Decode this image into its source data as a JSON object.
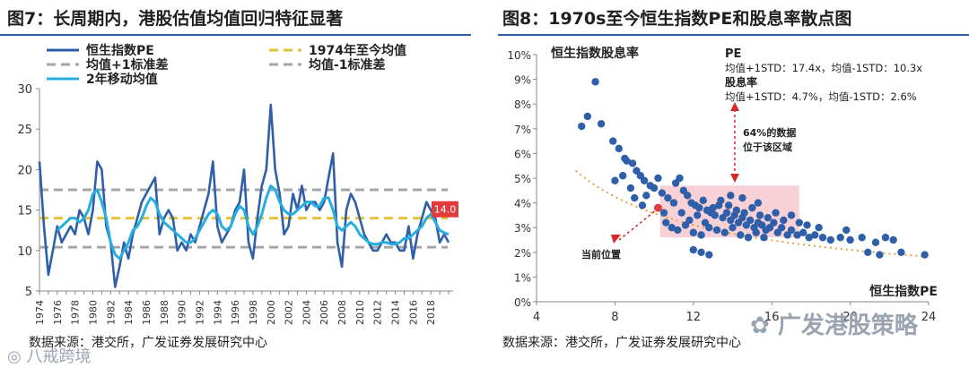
{
  "left": {
    "title": "图7：长周期内，港股估值均值回归特征显著",
    "source": "数据来源：港交所，广发证券发展研究中心",
    "chart_data": {
      "type": "line",
      "title": "图7：长周期内，港股估值均值回归特征显著",
      "x_tick_labels": [
        "1974",
        "1976",
        "1978",
        "1980",
        "1982",
        "1984",
        "1986",
        "1988",
        "1990",
        "1992",
        "1994",
        "1996",
        "1998",
        "2000",
        "2002",
        "2004",
        "2006",
        "2008",
        "2010",
        "2012",
        "2014",
        "2016",
        "2018"
      ],
      "x_range": [
        1974,
        2020.5
      ],
      "y_ticks": [
        5,
        10,
        15,
        20,
        25,
        30
      ],
      "ylim": [
        5,
        30
      ],
      "grid": false,
      "legend_position": "top",
      "current_label": "14.0",
      "series": [
        {
          "name": "恒生指数PE",
          "color": "#2f5fa8",
          "x": [
            1974.0,
            1974.5,
            1975.0,
            1975.5,
            1976.0,
            1976.5,
            1977.0,
            1977.5,
            1978.0,
            1978.5,
            1979.0,
            1979.5,
            1980.0,
            1980.5,
            1981.0,
            1981.5,
            1982.0,
            1982.5,
            1983.0,
            1983.5,
            1984.0,
            1984.5,
            1985.0,
            1985.5,
            1986.0,
            1986.5,
            1987.0,
            1987.5,
            1988.0,
            1988.5,
            1989.0,
            1989.5,
            1990.0,
            1990.5,
            1991.0,
            1991.5,
            1992.0,
            1992.5,
            1993.0,
            1993.5,
            1994.0,
            1994.5,
            1995.0,
            1995.5,
            1996.0,
            1996.5,
            1997.0,
            1997.5,
            1998.0,
            1998.5,
            1999.0,
            1999.5,
            2000.0,
            2000.5,
            2001.0,
            2001.5,
            2002.0,
            2002.5,
            2003.0,
            2003.5,
            2004.0,
            2004.5,
            2005.0,
            2005.5,
            2006.0,
            2006.5,
            2007.0,
            2007.5,
            2008.0,
            2008.5,
            2009.0,
            2009.5,
            2010.0,
            2010.5,
            2011.0,
            2011.5,
            2012.0,
            2012.5,
            2013.0,
            2013.5,
            2014.0,
            2014.5,
            2015.0,
            2015.5,
            2016.0,
            2016.5,
            2017.0,
            2017.5,
            2018.0,
            2018.5,
            2019.0,
            2019.5,
            2020.0
          ],
          "y": [
            21,
            13,
            7,
            10,
            13,
            11,
            12,
            13,
            12,
            15,
            14,
            12,
            15,
            21,
            20,
            13,
            11,
            5.5,
            8,
            11,
            9,
            12,
            14,
            16,
            17,
            18,
            19,
            12,
            14,
            15,
            14,
            10,
            11,
            10,
            12,
            11,
            13,
            15,
            17,
            21,
            13,
            11,
            12,
            13,
            15,
            16,
            20,
            11,
            9,
            14,
            18,
            20,
            28,
            20,
            17,
            12,
            13,
            17,
            15,
            18,
            15,
            16,
            16,
            15,
            16,
            19,
            22,
            11,
            8,
            15,
            17,
            16,
            14,
            12,
            11,
            10,
            10,
            11,
            12,
            11,
            11,
            10,
            10,
            13,
            9,
            12,
            14,
            16,
            15,
            14,
            11,
            12,
            11
          ]
        },
        {
          "name": "1974年至今均值",
          "color": "#e6c23a",
          "y_const": 14.0
        },
        {
          "name": "均值+1标准差",
          "color": "#a6a6a6",
          "y_const": 17.5
        },
        {
          "name": "均值-1标准差",
          "color": "#a6a6a6",
          "y_const": 10.4
        },
        {
          "name": "2年移动均值",
          "color": "#27aee0",
          "x": [
            1976.0,
            1976.5,
            1977.0,
            1977.5,
            1978.0,
            1978.5,
            1979.0,
            1979.5,
            1980.0,
            1980.5,
            1981.0,
            1981.5,
            1982.0,
            1982.5,
            1983.0,
            1983.5,
            1984.0,
            1984.5,
            1985.0,
            1985.5,
            1986.0,
            1986.5,
            1987.0,
            1987.5,
            1988.0,
            1988.5,
            1989.0,
            1989.5,
            1990.0,
            1990.5,
            1991.0,
            1991.5,
            1992.0,
            1992.5,
            1993.0,
            1993.5,
            1994.0,
            1994.5,
            1995.0,
            1995.5,
            1996.0,
            1996.5,
            1997.0,
            1997.5,
            1998.0,
            1998.5,
            1999.0,
            1999.5,
            2000.0,
            2000.5,
            2001.0,
            2001.5,
            2002.0,
            2002.5,
            2003.0,
            2003.5,
            2004.0,
            2004.5,
            2005.0,
            2005.5,
            2006.0,
            2006.5,
            2007.0,
            2007.5,
            2008.0,
            2008.5,
            2009.0,
            2009.5,
            2010.0,
            2010.5,
            2011.0,
            2011.5,
            2012.0,
            2012.5,
            2013.0,
            2013.5,
            2014.0,
            2014.5,
            2015.0,
            2015.5,
            2016.0,
            2016.5,
            2017.0,
            2017.5,
            2018.0,
            2018.5,
            2019.0,
            2019.5,
            2020.0
          ],
          "y": [
            12.5,
            13,
            13.5,
            14,
            14,
            13.5,
            14,
            15,
            17,
            17.5,
            16,
            14,
            11,
            9.5,
            9,
            10,
            11,
            12.5,
            13,
            14,
            15.5,
            16.5,
            16,
            14.5,
            13.5,
            13,
            12.5,
            12,
            11.5,
            11,
            11,
            11.5,
            12.5,
            13.5,
            14.5,
            15,
            14.5,
            13,
            12.5,
            13,
            14.5,
            15.5,
            15,
            13,
            12,
            13,
            14.5,
            16.5,
            18,
            17.5,
            16,
            15,
            14.5,
            14.5,
            15,
            15.5,
            16,
            16,
            15.5,
            15.5,
            16.5,
            16.5,
            15,
            13,
            12.5,
            13,
            13.5,
            13,
            12,
            11.5,
            11,
            10.8,
            10.8,
            11,
            11,
            10.8,
            10.8,
            11,
            11.5,
            11.5,
            12,
            12.5,
            13,
            14,
            14.5,
            13.5,
            12.5,
            12.2,
            12
          ]
        }
      ]
    }
  },
  "right": {
    "title": "图8：1970s至今恒生指数PE和股息率散点图",
    "source": "数据来源：港交所，广发证券发展研究中心",
    "chart_data": {
      "type": "scatter",
      "title": "图8：1970s至今恒生指数PE和股息率散点图",
      "xlabel": "恒生指数PE",
      "ylabel": "恒生指数股息率",
      "xlim": [
        4,
        24
      ],
      "ylim": [
        0,
        10
      ],
      "x_ticks": [
        4,
        8,
        12,
        16,
        20,
        24
      ],
      "y_tick_labels": [
        "0%",
        "1%",
        "2%",
        "3%",
        "4%",
        "5%",
        "6%",
        "7%",
        "8%",
        "9%",
        "10%"
      ],
      "color": "#2f5fa8",
      "trend_color": "#e6a23c",
      "highlight_band": {
        "x": [
          10.3,
          17.4
        ],
        "y": [
          2.6,
          4.7
        ],
        "color": "#f7c9cf"
      },
      "annotations": {
        "pe_header": "PE",
        "pe_text": "均值+1STD：17.4x，均值-1STD：10.3x",
        "dy_header": "股息率",
        "dy_text": "均值+1STD：4.7%，均值-1STD：2.6%",
        "band_note_1": "64%的数据",
        "band_note_2": "位于该区域",
        "current_note": "当前位置"
      },
      "current_point": {
        "x": 10.2,
        "y": 3.8
      },
      "points": [
        [
          7.0,
          8.9
        ],
        [
          6.6,
          7.5
        ],
        [
          6.3,
          7.1
        ],
        [
          7.3,
          7.2
        ],
        [
          7.9,
          6.5
        ],
        [
          8.2,
          6.2
        ],
        [
          8.5,
          5.8
        ],
        [
          8.6,
          5.7
        ],
        [
          8.9,
          5.6
        ],
        [
          9.1,
          5.3
        ],
        [
          9.3,
          5.1
        ],
        [
          9.5,
          4.9
        ],
        [
          9.8,
          4.7
        ],
        [
          10.0,
          4.6
        ],
        [
          10.2,
          5.0
        ],
        [
          10.4,
          4.4
        ],
        [
          10.7,
          4.2
        ],
        [
          11.1,
          4.8
        ],
        [
          11.3,
          5.0
        ],
        [
          11.5,
          4.5
        ],
        [
          11.7,
          4.3
        ],
        [
          11.9,
          4.0
        ],
        [
          12.1,
          3.9
        ],
        [
          12.3,
          3.8
        ],
        [
          12.5,
          4.1
        ],
        [
          12.7,
          3.7
        ],
        [
          12.9,
          3.6
        ],
        [
          13.1,
          3.5
        ],
        [
          13.3,
          3.9
        ],
        [
          13.5,
          3.4
        ],
        [
          13.7,
          3.6
        ],
        [
          13.9,
          3.3
        ],
        [
          14.1,
          3.5
        ],
        [
          14.3,
          3.2
        ],
        [
          14.5,
          3.4
        ],
        [
          14.7,
          3.1
        ],
        [
          14.9,
          3.3
        ],
        [
          15.1,
          3.0
        ],
        [
          15.3,
          3.2
        ],
        [
          15.5,
          3.1
        ],
        [
          15.7,
          2.9
        ],
        [
          15.9,
          3.0
        ],
        [
          16.1,
          3.2
        ],
        [
          16.3,
          2.8
        ],
        [
          16.5,
          3.0
        ],
        [
          16.8,
          2.7
        ],
        [
          17.0,
          2.9
        ],
        [
          17.3,
          2.7
        ],
        [
          17.6,
          2.8
        ],
        [
          17.9,
          2.6
        ],
        [
          18.2,
          2.7
        ],
        [
          18.6,
          2.6
        ],
        [
          19.0,
          2.5
        ],
        [
          19.5,
          2.6
        ],
        [
          20.0,
          2.5
        ],
        [
          20.6,
          2.6
        ],
        [
          21.3,
          2.4
        ],
        [
          21.8,
          2.6
        ],
        [
          22.2,
          2.5
        ],
        [
          23.8,
          1.9
        ],
        [
          11.0,
          4.0
        ],
        [
          11.4,
          3.6
        ],
        [
          11.8,
          3.3
        ],
        [
          12.2,
          3.5
        ],
        [
          12.6,
          3.2
        ],
        [
          13.0,
          3.8
        ],
        [
          13.4,
          4.1
        ],
        [
          13.8,
          3.9
        ],
        [
          14.2,
          3.7
        ],
        [
          14.6,
          3.6
        ],
        [
          15.0,
          3.8
        ],
        [
          15.4,
          3.5
        ],
        [
          15.8,
          3.4
        ],
        [
          16.2,
          3.6
        ],
        [
          16.6,
          3.3
        ],
        [
          17.0,
          3.5
        ],
        [
          17.4,
          3.2
        ],
        [
          10.6,
          3.2
        ],
        [
          10.9,
          3.0
        ],
        [
          11.2,
          2.9
        ],
        [
          11.6,
          3.1
        ],
        [
          12.0,
          2.8
        ],
        [
          12.4,
          2.7
        ],
        [
          12.8,
          3.0
        ],
        [
          13.2,
          2.9
        ],
        [
          13.6,
          2.8
        ],
        [
          14.0,
          3.0
        ],
        [
          14.4,
          2.7
        ],
        [
          14.8,
          2.6
        ],
        [
          15.2,
          2.8
        ],
        [
          15.6,
          2.6
        ],
        [
          9.0,
          4.2
        ],
        [
          9.4,
          3.9
        ],
        [
          8.8,
          4.6
        ],
        [
          8.4,
          5.1
        ],
        [
          8.0,
          4.9
        ],
        [
          9.6,
          4.3
        ],
        [
          10.5,
          3.6
        ],
        [
          12.0,
          2.1
        ],
        [
          12.4,
          2.0
        ],
        [
          12.8,
          1.9
        ],
        [
          20.9,
          2.0
        ],
        [
          21.5,
          1.9
        ],
        [
          22.6,
          2.0
        ],
        [
          19.8,
          2.9
        ],
        [
          18.4,
          3.0
        ],
        [
          17.8,
          3.1
        ],
        [
          13.9,
          4.3
        ],
        [
          14.5,
          4.2
        ],
        [
          15.3,
          4.0
        ]
      ]
    }
  },
  "watermarks": {
    "left_text": "八戒跨境",
    "right_text": "广发港股策略"
  }
}
